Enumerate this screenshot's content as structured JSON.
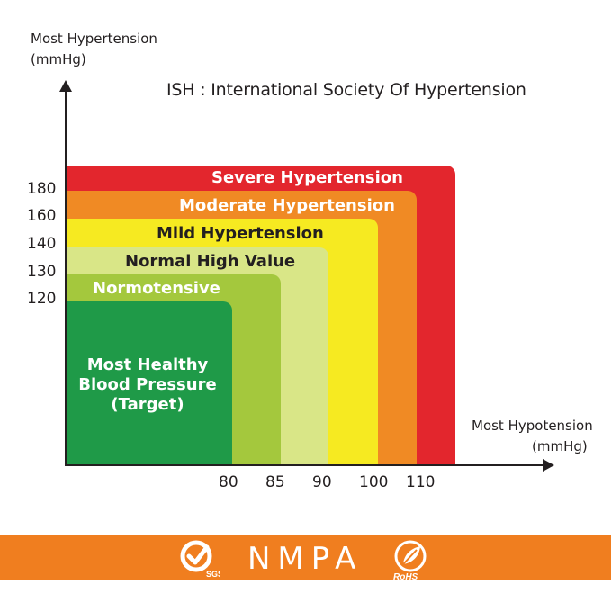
{
  "title": "ISH : International Society Of Hypertension",
  "y_axis": {
    "line1": "Most Hypertension",
    "line2": "(mmHg)",
    "ticks": [
      "180",
      "160",
      "140",
      "130",
      "120"
    ]
  },
  "x_axis": {
    "line1": "Most Hypotension",
    "line2": "(mmHg)",
    "ticks": [
      "80",
      "85",
      "90",
      "100",
      "110"
    ]
  },
  "zones": {
    "severe": {
      "label": "Severe Hypertension",
      "color": "#e3262d"
    },
    "moderate": {
      "label": "Moderate Hypertension",
      "color": "#f08a24"
    },
    "mild": {
      "label": "Mild Hypertension",
      "color": "#f6ea21"
    },
    "normal_high": {
      "label": "Normal High Value",
      "color": "#d9e687"
    },
    "normotensive": {
      "label": "Normotensive",
      "color": "#a4c83d"
    },
    "healthy": {
      "line1": "Most Healthy",
      "line2": "Blood Pressure",
      "line3": "(Target)",
      "color": "#1f9a48"
    }
  },
  "footer": {
    "brand": "NMPA",
    "color": "#f07e1f",
    "left_logo_text": "SGS",
    "right_logo_text": "RoHS"
  }
}
